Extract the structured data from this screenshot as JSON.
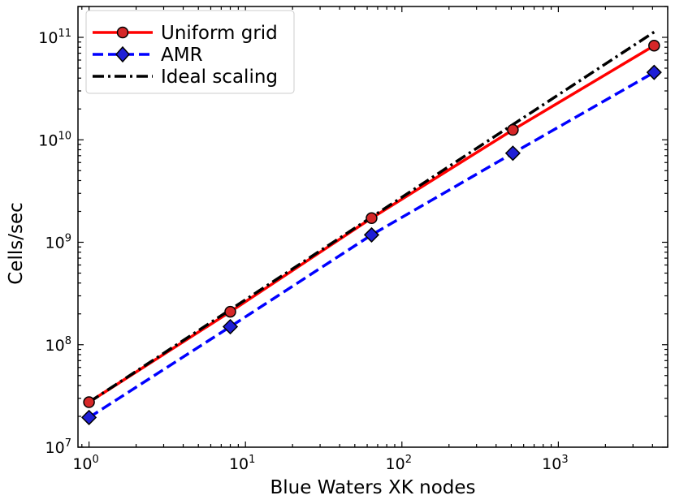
{
  "chart_data": {
    "type": "line",
    "title": "",
    "xlabel": "Blue Waters XK nodes",
    "ylabel": "Cells/sec",
    "xscale": "log",
    "yscale": "log",
    "xlim": [
      0.85,
      5000
    ],
    "ylim": [
      10000000,
      200000000000
    ],
    "x_ticks": [
      {
        "base": "10",
        "exp": "0",
        "value": 1
      },
      {
        "base": "10",
        "exp": "1",
        "value": 10
      },
      {
        "base": "10",
        "exp": "2",
        "value": 100
      },
      {
        "base": "10",
        "exp": "3",
        "value": 1000
      }
    ],
    "y_ticks": [
      {
        "base": "10",
        "exp": "7",
        "value": 10000000
      },
      {
        "base": "10",
        "exp": "8",
        "value": 100000000
      },
      {
        "base": "10",
        "exp": "9",
        "value": 1000000000
      },
      {
        "base": "10",
        "exp": "10",
        "value": 10000000000
      },
      {
        "base": "10",
        "exp": "11",
        "value": 100000000000
      }
    ],
    "grid": false,
    "legend_position": "top-left",
    "series": [
      {
        "name": "Uniform grid",
        "color": "#ff0000",
        "marker": "circle",
        "marker_face": "#d62728",
        "line_style": "solid",
        "x": [
          1,
          8,
          64,
          512,
          4096
        ],
        "y": [
          27500000,
          210000000,
          1720000000,
          12500000000,
          83000000000
        ]
      },
      {
        "name": "AMR",
        "color": "#0000ff",
        "marker": "diamond",
        "marker_face": "#1f1fd6",
        "line_style": "dashed",
        "x": [
          1,
          8,
          64,
          512,
          4096
        ],
        "y": [
          19500000,
          150000000,
          1180000000,
          7400000000,
          45500000000
        ]
      },
      {
        "name": "Ideal scaling",
        "color": "#000000",
        "marker": "none",
        "line_style": "dashdot",
        "x": [
          1,
          4096
        ],
        "y": [
          27500000,
          112640000000
        ]
      }
    ]
  }
}
